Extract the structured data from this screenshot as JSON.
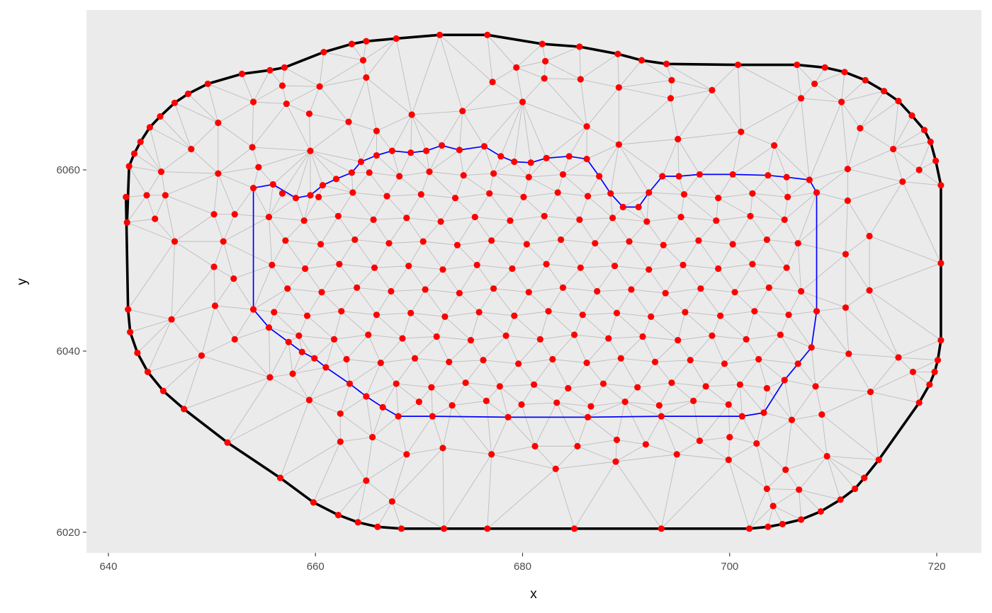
{
  "chart_data": {
    "type": "mesh",
    "x_label": "x",
    "y_label": "y",
    "xlim": [
      637.88,
      724.31
    ],
    "ylim": [
      6017.73,
      6077.66
    ],
    "xticks": [
      640,
      660,
      680,
      700,
      720
    ],
    "yticks": [
      6020,
      6040,
      6060
    ],
    "x_minor_ticks": [
      650,
      670,
      690,
      710
    ],
    "y_minor_ticks": [
      6030,
      6050,
      6070
    ],
    "grid": true,
    "panel_color": "#ebebeb",
    "mesh_color": "#bdbdbd",
    "series": [
      {
        "line_color": "#000000",
        "point_color": "#ff0000",
        "closed": true,
        "x": [
          641.7,
          641.8,
          642.0,
          642.5,
          643.1,
          644.0,
          645.0,
          646.4,
          647.7,
          649.6,
          652.9,
          655.6,
          657.0,
          660.8,
          663.5,
          664.9,
          667.8,
          672.0,
          676.6,
          681.9,
          685.5,
          689.2,
          691.5,
          693.9,
          700.8,
          706.5,
          709.2,
          711.1,
          713.1,
          714.9,
          716.3,
          717.6,
          718.8,
          719.4,
          719.9,
          720.4,
          720.4,
          720.4,
          720.1,
          719.8,
          719.3,
          718.3,
          714.4,
          713.0,
          712.1,
          710.7,
          708.8,
          706.9,
          705.1,
          703.7,
          701.9,
          693.4,
          685.0,
          676.6,
          672.4,
          668.3,
          666.0,
          664.1,
          662.2,
          659.8,
          656.6,
          651.5,
          647.3,
          645.3,
          643.8,
          642.8,
          642.1,
          641.9
        ],
        "values": [
          6057.0,
          6054.2,
          6060.4,
          6061.8,
          6063.1,
          6064.7,
          6065.9,
          6067.4,
          6068.4,
          6069.5,
          6070.6,
          6071.0,
          6071.3,
          6073.0,
          6073.9,
          6074.2,
          6074.5,
          6074.9,
          6074.9,
          6073.9,
          6073.6,
          6072.8,
          6072.1,
          6071.7,
          6071.6,
          6071.6,
          6071.3,
          6070.8,
          6069.9,
          6068.7,
          6067.6,
          6066.0,
          6064.4,
          6063.1,
          6061.0,
          6058.3,
          6049.7,
          6041.2,
          6039.0,
          6037.7,
          6036.3,
          6034.3,
          6028.0,
          6026.0,
          6024.8,
          6023.6,
          6022.3,
          6021.4,
          6020.9,
          6020.6,
          6020.4,
          6020.4,
          6020.4,
          6020.4,
          6020.4,
          6020.4,
          6020.6,
          6021.1,
          6021.9,
          6023.3,
          6026.0,
          6029.9,
          6033.6,
          6035.6,
          6037.7,
          6039.8,
          6042.1,
          6044.6
        ]
      },
      {
        "line_color": "#0000ff",
        "point_color": "#ff0000",
        "closed": true,
        "x": [
          654.0,
          655.9,
          658.1,
          659.5,
          660.7,
          662.0,
          663.5,
          664.4,
          665.9,
          667.4,
          669.2,
          670.7,
          672.2,
          673.9,
          676.3,
          677.9,
          679.2,
          680.8,
          682.3,
          684.5,
          686.2,
          687.4,
          688.5,
          689.7,
          691.2,
          692.2,
          693.5,
          695.1,
          697.1,
          700.3,
          703.7,
          705.5,
          707.7,
          708.4,
          708.4,
          707.9,
          706.6,
          705.3,
          703.3,
          701.2,
          693.4,
          686.3,
          678.6,
          671.3,
          668.0,
          666.5,
          664.9,
          663.3,
          661.0,
          659.9,
          658.7,
          657.4,
          655.5,
          654.0
        ],
        "values": [
          6058.0,
          6058.4,
          6056.9,
          6057.2,
          6058.3,
          6059.0,
          6059.7,
          6060.9,
          6061.6,
          6062.1,
          6061.9,
          6062.1,
          6062.7,
          6062.2,
          6062.6,
          6061.5,
          6060.9,
          6060.8,
          6061.3,
          6061.5,
          6061.2,
          6059.3,
          6057.4,
          6055.9,
          6055.9,
          6057.5,
          6059.3,
          6059.3,
          6059.5,
          6059.5,
          6059.4,
          6059.2,
          6058.9,
          6057.5,
          6044.4,
          6040.4,
          6038.6,
          6036.8,
          6033.2,
          6032.8,
          6032.8,
          6032.7,
          6032.7,
          6032.8,
          6032.8,
          6033.8,
          6035.0,
          6036.4,
          6038.2,
          6039.2,
          6039.9,
          6041.0,
          6042.6,
          6044.6
        ]
      },
      {
        "point_color": "#ff0000",
        "closed": false,
        "x": [
          665.2,
          668.1,
          671.0,
          674.3,
          677.2,
          680.6,
          683.9,
          656.8,
          660.3,
          663.6,
          666.9,
          670.2,
          673.5,
          676.8,
          680.1,
          683.4,
          686.3,
          695.6,
          698.9,
          702.2,
          705.6,
          655.5,
          658.9,
          662.2,
          665.6,
          668.8,
          672.1,
          675.4,
          678.8,
          682.1,
          685.5,
          688.7,
          692.0,
          695.3,
          698.7,
          702.0,
          705.3,
          657.1,
          660.5,
          663.8,
          667.1,
          670.4,
          673.7,
          677.0,
          680.4,
          683.7,
          687.0,
          690.3,
          693.6,
          697.0,
          700.3,
          703.6,
          706.6,
          655.8,
          659.0,
          662.3,
          665.7,
          669.0,
          672.3,
          675.6,
          679.0,
          682.3,
          685.6,
          688.9,
          692.2,
          695.5,
          698.9,
          702.2,
          705.5,
          657.3,
          660.6,
          664.0,
          667.3,
          670.6,
          673.9,
          677.2,
          680.6,
          683.9,
          687.2,
          690.5,
          693.8,
          697.2,
          700.5,
          703.8,
          706.9,
          656.0,
          659.2,
          662.5,
          665.9,
          669.2,
          672.5,
          675.8,
          679.2,
          682.5,
          685.8,
          689.1,
          692.4,
          695.7,
          699.1,
          702.4,
          705.7,
          658.4,
          661.8,
          665.1,
          668.4,
          671.7,
          675.0,
          678.4,
          681.7,
          685.0,
          688.3,
          691.6,
          695.0,
          698.3,
          701.6,
          704.9,
          663.0,
          666.3,
          669.6,
          672.9,
          676.2,
          679.6,
          682.9,
          686.2,
          689.5,
          692.8,
          696.2,
          699.5,
          702.8,
          667.8,
          671.2,
          674.5,
          677.8,
          681.1,
          684.4,
          687.8,
          691.1,
          694.4,
          697.7,
          701.0,
          703.6,
          670.0,
          673.2,
          676.5,
          679.9,
          683.3,
          686.6,
          689.9,
          693.2,
          696.5,
          699.9,
          654.0,
          657.2,
          656.8,
          660.4,
          664.6,
          664.9,
          663.2,
          665.9,
          669.3,
          674.2,
          677.1,
          679.4,
          682.2,
          682.1,
          680.0,
          685.6,
          689.3,
          686.2,
          689.3,
          694.4,
          694.3,
          698.3,
          695.0,
          701.1,
          704.3,
          706.9,
          708.2,
          710.8,
          712.6,
          715.8,
          716.7,
          718.3,
          711.4,
          711.4,
          713.5,
          711.2,
          713.5,
          711.2,
          711.5,
          716.3,
          717.7,
          713.6,
          708.3,
          708.9,
          706.0,
          702.6,
          700.0,
          699.9,
          697.1,
          694.9,
          691.9,
          689.0,
          689.1,
          685.3,
          683.2,
          681.2,
          677.0,
          672.3,
          668.8,
          667.4,
          664.9,
          665.5,
          662.4,
          662.4,
          659.4,
          655.6,
          657.8,
          649.0,
          646.1,
          650.3,
          652.1,
          650.2,
          651.1,
          652.2,
          650.2,
          646.4,
          645.5,
          644.5,
          643.7,
          645.1,
          648.0,
          650.6,
          650.6,
          653.9,
          654.5,
          659.5,
          659.4,
          652.2,
          705.4,
          703.6,
          706.7,
          709.4,
          704.2
        ],
        "values": [
          6059.7,
          6059.3,
          6059.8,
          6059.4,
          6059.6,
          6059.2,
          6059.5,
          6057.4,
          6057.0,
          6057.5,
          6057.1,
          6057.3,
          6056.9,
          6057.4,
          6057.0,
          6057.5,
          6057.1,
          6057.3,
          6056.9,
          6057.4,
          6057.0,
          6054.8,
          6054.4,
          6054.9,
          6054.5,
          6054.7,
          6054.3,
          6054.8,
          6054.4,
          6054.9,
          6054.5,
          6054.7,
          6054.3,
          6054.8,
          6054.4,
          6054.9,
          6054.5,
          6052.2,
          6051.8,
          6052.3,
          6051.9,
          6052.1,
          6051.7,
          6052.2,
          6051.8,
          6052.3,
          6051.9,
          6052.1,
          6051.7,
          6052.2,
          6051.8,
          6052.3,
          6051.9,
          6049.5,
          6049.1,
          6049.6,
          6049.2,
          6049.4,
          6049.0,
          6049.5,
          6049.1,
          6049.6,
          6049.2,
          6049.4,
          6049.0,
          6049.5,
          6049.1,
          6049.6,
          6049.2,
          6046.9,
          6046.5,
          6047.0,
          6046.6,
          6046.8,
          6046.4,
          6046.9,
          6046.5,
          6047.0,
          6046.6,
          6046.8,
          6046.4,
          6046.9,
          6046.5,
          6047.0,
          6046.6,
          6044.3,
          6043.9,
          6044.4,
          6044.0,
          6044.2,
          6043.8,
          6044.3,
          6043.9,
          6044.4,
          6044.0,
          6044.2,
          6043.8,
          6044.3,
          6043.9,
          6044.4,
          6044.0,
          6041.7,
          6041.3,
          6041.8,
          6041.4,
          6041.6,
          6041.2,
          6041.7,
          6041.3,
          6041.8,
          6041.4,
          6041.6,
          6041.2,
          6041.7,
          6041.3,
          6041.8,
          6039.1,
          6038.7,
          6039.2,
          6038.8,
          6039.0,
          6038.6,
          6039.1,
          6038.7,
          6039.2,
          6038.8,
          6039.0,
          6038.6,
          6039.1,
          6036.4,
          6036.0,
          6036.5,
          6036.1,
          6036.3,
          6035.9,
          6036.4,
          6036.0,
          6036.5,
          6036.1,
          6036.3,
          6035.9,
          6034.4,
          6034.0,
          6034.5,
          6034.1,
          6034.3,
          6033.9,
          6034.4,
          6034.0,
          6034.5,
          6034.1,
          6067.5,
          6067.3,
          6069.3,
          6069.2,
          6072.1,
          6070.2,
          6065.3,
          6064.3,
          6066.1,
          6066.5,
          6069.7,
          6071.3,
          6072.0,
          6070.1,
          6067.5,
          6070.0,
          6069.1,
          6064.8,
          6062.8,
          6069.9,
          6067.9,
          6068.8,
          6063.4,
          6064.2,
          6062.7,
          6067.9,
          6069.5,
          6067.5,
          6064.6,
          6062.3,
          6058.7,
          6060.0,
          6060.1,
          6056.6,
          6052.7,
          6050.7,
          6046.7,
          6044.8,
          6039.7,
          6039.3,
          6037.7,
          6035.5,
          6036.1,
          6033.0,
          6032.4,
          6029.8,
          6030.5,
          6028.0,
          6030.1,
          6028.6,
          6029.7,
          6027.8,
          6030.2,
          6029.5,
          6027.0,
          6029.5,
          6028.6,
          6029.3,
          6028.6,
          6023.4,
          6025.7,
          6030.5,
          6030.0,
          6033.1,
          6034.6,
          6037.1,
          6037.5,
          6039.5,
          6043.5,
          6045.0,
          6048.0,
          6049.3,
          6052.1,
          6055.1,
          6055.1,
          6052.1,
          6057.2,
          6054.6,
          6057.2,
          6059.8,
          6062.3,
          6065.2,
          6059.6,
          6062.5,
          6060.3,
          6062.1,
          6066.2,
          6041.3,
          6026.9,
          6024.8,
          6024.7,
          6028.4,
          6022.9
        ]
      }
    ]
  }
}
